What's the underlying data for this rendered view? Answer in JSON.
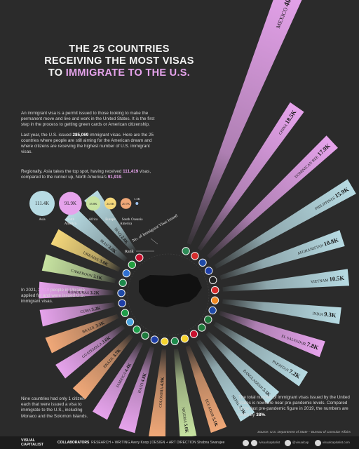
{
  "header": {
    "title_line1": "THE 25 COUNTRIES",
    "title_line2": "RECEIVING THE MOST VISAS",
    "title_line3_pre": "TO ",
    "title_line3_hl": "IMMIGRATE TO THE U.S."
  },
  "intro": {
    "p1": "An immigrant visa is a permit issued to those looking to make the permanent move and live and work in the United States. It is the first step in the process to getting green cards or American citizenship.",
    "p2_a": "Last year, the U.S. issued ",
    "p2_num": "285,069",
    "p2_b": " immigrant visas. Here are the 25 countries where people are still aiming for the American dream and where citizens are receiving the highest number of U.S. immigrant visas."
  },
  "regions_note": {
    "text_a": "Regionally, Asia takes the top spot, having received ",
    "num_asia": "111,419",
    "text_b": " visas, compared to the runner up, North America's ",
    "num_na": "91,919",
    "text_c": "."
  },
  "regions": [
    {
      "name": "Asia",
      "label": "111.4K",
      "value": 111.4,
      "color": "#b7dbe3"
    },
    {
      "name": "North America",
      "label": "91.9K",
      "value": 91.9,
      "color": "#e6a3ec"
    },
    {
      "name": "Africa",
      "label": "35.8K",
      "value": 35.8,
      "color": "#c7e3a1"
    },
    {
      "name": "Europe",
      "label": "24.0K",
      "value": 24.0,
      "color": "#f4d77b"
    },
    {
      "name": "South America",
      "label": "20.7K",
      "value": 20.7,
      "color": "#f0a878"
    },
    {
      "name": "Oceania",
      "label": "1.3K",
      "value": 1.3,
      "color": "#9ec3f0"
    }
  ],
  "ukraine_note": {
    "a": "In 2021, ",
    "num": "3,019",
    "b": " people in Ukraine applied for and were issued U.S. immigrant visas."
  },
  "nine_note": "Nine countries had only 1 citizen each that were issued a visa to immigrate to the U.S., including Monaco and the Solomon Islands.",
  "total_note": {
    "a": "The total number of immigrant visas issued by the United States is nowhere near pre-pandemic levels. Compared to the last pre-pandemic figure in 2019, the numbers are down by ",
    "num": "38%",
    "b": "."
  },
  "axis_labels": {
    "visas": "No. of Immigrant Visas Issued",
    "rank": "Rank"
  },
  "source": "Source: U.S. Department of State – Bureau of Consular Affairs",
  "footer": {
    "brand_line1": "VISUAL",
    "brand_line2": "CAPITALIST",
    "collab": "COLLABORATORS",
    "credits": "RESEARCH + WRITING Avery Koop  |  DESIGN + ART DIRECTION Shabna Swarajee",
    "social1": "/visualcapitalist",
    "social2": "@visualcap",
    "social3": "visualcapitalist.com"
  },
  "chart_data": {
    "type": "bar",
    "title": "THE 25 COUNTRIES RECEIVING THE MOST VISAS TO IMMIGRATE TO THE U.S.",
    "xlabel": "Rank",
    "ylabel": "No. of Immigrant Visas Issued",
    "categories": [
      "MEXICO",
      "CHINA",
      "DOMINICAN REP.",
      "PHILIPPINES",
      "AFGHANISTAN",
      "VIETNAM",
      "INDIA",
      "EL SALVADOR",
      "PAKISTAN",
      "BANGLADESH",
      "NEPAL",
      "ECUADOR",
      "NIGERIA",
      "COLOMBIA",
      "HAITI",
      "JAMAICA",
      "BRAZIL",
      "GUATEMALA",
      "BRAZIL",
      "CUBA",
      "HONDURAS",
      "CAMEROON",
      "UKRAINE",
      "IRAN",
      "IRAQ"
    ],
    "labels": [
      "40.6K",
      "18.5K",
      "17.9K",
      "15.9K",
      "10.8K",
      "10.5K",
      "9.3K",
      "7.8K",
      "7.2K",
      "5.5K",
      "5.3K",
      "5.1K",
      "5.0K",
      "4.9K",
      "4.8K",
      "4.4K",
      "3.7K",
      "3.6K",
      "3.3K",
      "3.2K",
      "3.2K",
      "3.1K",
      "3.0K",
      "3.0K",
      "2.8K"
    ],
    "values": [
      40.6,
      18.5,
      17.9,
      15.9,
      10.8,
      10.5,
      9.3,
      7.8,
      7.2,
      5.5,
      5.3,
      5.1,
      5.0,
      4.9,
      4.8,
      4.4,
      3.7,
      3.6,
      3.3,
      3.2,
      3.2,
      3.1,
      3.0,
      3.0,
      2.8
    ],
    "unit": "thousand visas"
  }
}
